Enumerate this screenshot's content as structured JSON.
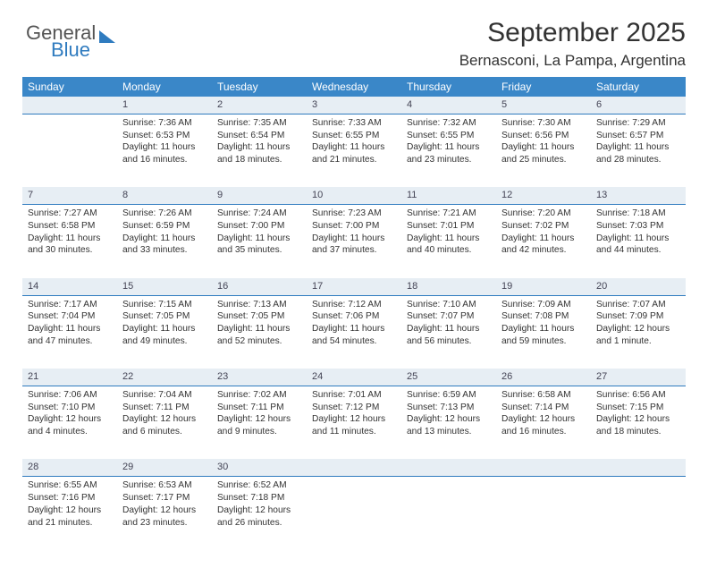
{
  "logo": {
    "text1": "General",
    "text2": "Blue"
  },
  "title": "September 2025",
  "location": "Bernasconi, La Pampa, Argentina",
  "colors": {
    "header_bg": "#3a87c8",
    "header_text": "#ffffff",
    "dayrow_bg": "#e7eef4",
    "dayrow_border": "#2f7bbf",
    "logo_blue": "#2f7bbf"
  },
  "day_headers": [
    "Sunday",
    "Monday",
    "Tuesday",
    "Wednesday",
    "Thursday",
    "Friday",
    "Saturday"
  ],
  "weeks": [
    {
      "nums": [
        "",
        "1",
        "2",
        "3",
        "4",
        "5",
        "6"
      ],
      "cells": [
        null,
        {
          "sunrise": "Sunrise: 7:36 AM",
          "sunset": "Sunset: 6:53 PM",
          "daylight": "Daylight: 11 hours and 16 minutes."
        },
        {
          "sunrise": "Sunrise: 7:35 AM",
          "sunset": "Sunset: 6:54 PM",
          "daylight": "Daylight: 11 hours and 18 minutes."
        },
        {
          "sunrise": "Sunrise: 7:33 AM",
          "sunset": "Sunset: 6:55 PM",
          "daylight": "Daylight: 11 hours and 21 minutes."
        },
        {
          "sunrise": "Sunrise: 7:32 AM",
          "sunset": "Sunset: 6:55 PM",
          "daylight": "Daylight: 11 hours and 23 minutes."
        },
        {
          "sunrise": "Sunrise: 7:30 AM",
          "sunset": "Sunset: 6:56 PM",
          "daylight": "Daylight: 11 hours and 25 minutes."
        },
        {
          "sunrise": "Sunrise: 7:29 AM",
          "sunset": "Sunset: 6:57 PM",
          "daylight": "Daylight: 11 hours and 28 minutes."
        }
      ]
    },
    {
      "nums": [
        "7",
        "8",
        "9",
        "10",
        "11",
        "12",
        "13"
      ],
      "cells": [
        {
          "sunrise": "Sunrise: 7:27 AM",
          "sunset": "Sunset: 6:58 PM",
          "daylight": "Daylight: 11 hours and 30 minutes."
        },
        {
          "sunrise": "Sunrise: 7:26 AM",
          "sunset": "Sunset: 6:59 PM",
          "daylight": "Daylight: 11 hours and 33 minutes."
        },
        {
          "sunrise": "Sunrise: 7:24 AM",
          "sunset": "Sunset: 7:00 PM",
          "daylight": "Daylight: 11 hours and 35 minutes."
        },
        {
          "sunrise": "Sunrise: 7:23 AM",
          "sunset": "Sunset: 7:00 PM",
          "daylight": "Daylight: 11 hours and 37 minutes."
        },
        {
          "sunrise": "Sunrise: 7:21 AM",
          "sunset": "Sunset: 7:01 PM",
          "daylight": "Daylight: 11 hours and 40 minutes."
        },
        {
          "sunrise": "Sunrise: 7:20 AM",
          "sunset": "Sunset: 7:02 PM",
          "daylight": "Daylight: 11 hours and 42 minutes."
        },
        {
          "sunrise": "Sunrise: 7:18 AM",
          "sunset": "Sunset: 7:03 PM",
          "daylight": "Daylight: 11 hours and 44 minutes."
        }
      ]
    },
    {
      "nums": [
        "14",
        "15",
        "16",
        "17",
        "18",
        "19",
        "20"
      ],
      "cells": [
        {
          "sunrise": "Sunrise: 7:17 AM",
          "sunset": "Sunset: 7:04 PM",
          "daylight": "Daylight: 11 hours and 47 minutes."
        },
        {
          "sunrise": "Sunrise: 7:15 AM",
          "sunset": "Sunset: 7:05 PM",
          "daylight": "Daylight: 11 hours and 49 minutes."
        },
        {
          "sunrise": "Sunrise: 7:13 AM",
          "sunset": "Sunset: 7:05 PM",
          "daylight": "Daylight: 11 hours and 52 minutes."
        },
        {
          "sunrise": "Sunrise: 7:12 AM",
          "sunset": "Sunset: 7:06 PM",
          "daylight": "Daylight: 11 hours and 54 minutes."
        },
        {
          "sunrise": "Sunrise: 7:10 AM",
          "sunset": "Sunset: 7:07 PM",
          "daylight": "Daylight: 11 hours and 56 minutes."
        },
        {
          "sunrise": "Sunrise: 7:09 AM",
          "sunset": "Sunset: 7:08 PM",
          "daylight": "Daylight: 11 hours and 59 minutes."
        },
        {
          "sunrise": "Sunrise: 7:07 AM",
          "sunset": "Sunset: 7:09 PM",
          "daylight": "Daylight: 12 hours and 1 minute."
        }
      ]
    },
    {
      "nums": [
        "21",
        "22",
        "23",
        "24",
        "25",
        "26",
        "27"
      ],
      "cells": [
        {
          "sunrise": "Sunrise: 7:06 AM",
          "sunset": "Sunset: 7:10 PM",
          "daylight": "Daylight: 12 hours and 4 minutes."
        },
        {
          "sunrise": "Sunrise: 7:04 AM",
          "sunset": "Sunset: 7:11 PM",
          "daylight": "Daylight: 12 hours and 6 minutes."
        },
        {
          "sunrise": "Sunrise: 7:02 AM",
          "sunset": "Sunset: 7:11 PM",
          "daylight": "Daylight: 12 hours and 9 minutes."
        },
        {
          "sunrise": "Sunrise: 7:01 AM",
          "sunset": "Sunset: 7:12 PM",
          "daylight": "Daylight: 12 hours and 11 minutes."
        },
        {
          "sunrise": "Sunrise: 6:59 AM",
          "sunset": "Sunset: 7:13 PM",
          "daylight": "Daylight: 12 hours and 13 minutes."
        },
        {
          "sunrise": "Sunrise: 6:58 AM",
          "sunset": "Sunset: 7:14 PM",
          "daylight": "Daylight: 12 hours and 16 minutes."
        },
        {
          "sunrise": "Sunrise: 6:56 AM",
          "sunset": "Sunset: 7:15 PM",
          "daylight": "Daylight: 12 hours and 18 minutes."
        }
      ]
    },
    {
      "nums": [
        "28",
        "29",
        "30",
        "",
        "",
        "",
        ""
      ],
      "cells": [
        {
          "sunrise": "Sunrise: 6:55 AM",
          "sunset": "Sunset: 7:16 PM",
          "daylight": "Daylight: 12 hours and 21 minutes."
        },
        {
          "sunrise": "Sunrise: 6:53 AM",
          "sunset": "Sunset: 7:17 PM",
          "daylight": "Daylight: 12 hours and 23 minutes."
        },
        {
          "sunrise": "Sunrise: 6:52 AM",
          "sunset": "Sunset: 7:18 PM",
          "daylight": "Daylight: 12 hours and 26 minutes."
        },
        null,
        null,
        null,
        null
      ]
    }
  ]
}
